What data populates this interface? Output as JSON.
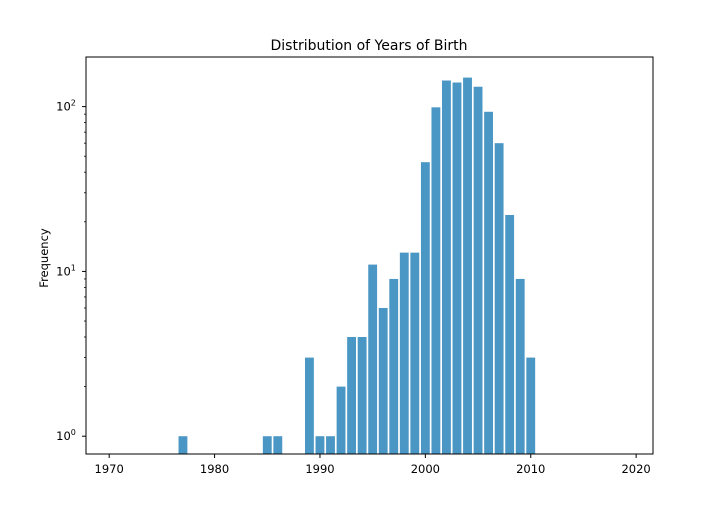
{
  "chart_data": {
    "type": "bar",
    "title": "Distribution of Years of Birth",
    "xlabel": "",
    "ylabel": "Frequency",
    "yscale": "log",
    "xlim": [
      1967.8,
      2021.6
    ],
    "ylim": [
      0.78,
      200
    ],
    "x_ticks": [
      1970,
      1980,
      1990,
      2000,
      2010,
      2020
    ],
    "y_ticks": [
      1,
      10,
      100
    ],
    "y_tick_labels": [
      {
        "base": "10",
        "exp": "0"
      },
      {
        "base": "10",
        "exp": "1"
      },
      {
        "base": "10",
        "exp": "2"
      }
    ],
    "grid": false,
    "color": "#4a96c4",
    "bars": [
      {
        "year": 1977,
        "count": 1
      },
      {
        "year": 1985,
        "count": 1
      },
      {
        "year": 1986,
        "count": 1
      },
      {
        "year": 1989,
        "count": 3
      },
      {
        "year": 1990,
        "count": 1
      },
      {
        "year": 1991,
        "count": 1
      },
      {
        "year": 1992,
        "count": 2
      },
      {
        "year": 1993,
        "count": 4
      },
      {
        "year": 1994,
        "count": 4
      },
      {
        "year": 1995,
        "count": 11
      },
      {
        "year": 1996,
        "count": 6
      },
      {
        "year": 1997,
        "count": 9
      },
      {
        "year": 1998,
        "count": 13
      },
      {
        "year": 1999,
        "count": 13
      },
      {
        "year": 2000,
        "count": 46
      },
      {
        "year": 2001,
        "count": 99
      },
      {
        "year": 2002,
        "count": 144
      },
      {
        "year": 2003,
        "count": 140
      },
      {
        "year": 2004,
        "count": 150
      },
      {
        "year": 2005,
        "count": 132
      },
      {
        "year": 2006,
        "count": 93
      },
      {
        "year": 2007,
        "count": 60
      },
      {
        "year": 2008,
        "count": 22
      },
      {
        "year": 2009,
        "count": 9
      },
      {
        "year": 2010,
        "count": 3
      }
    ]
  }
}
